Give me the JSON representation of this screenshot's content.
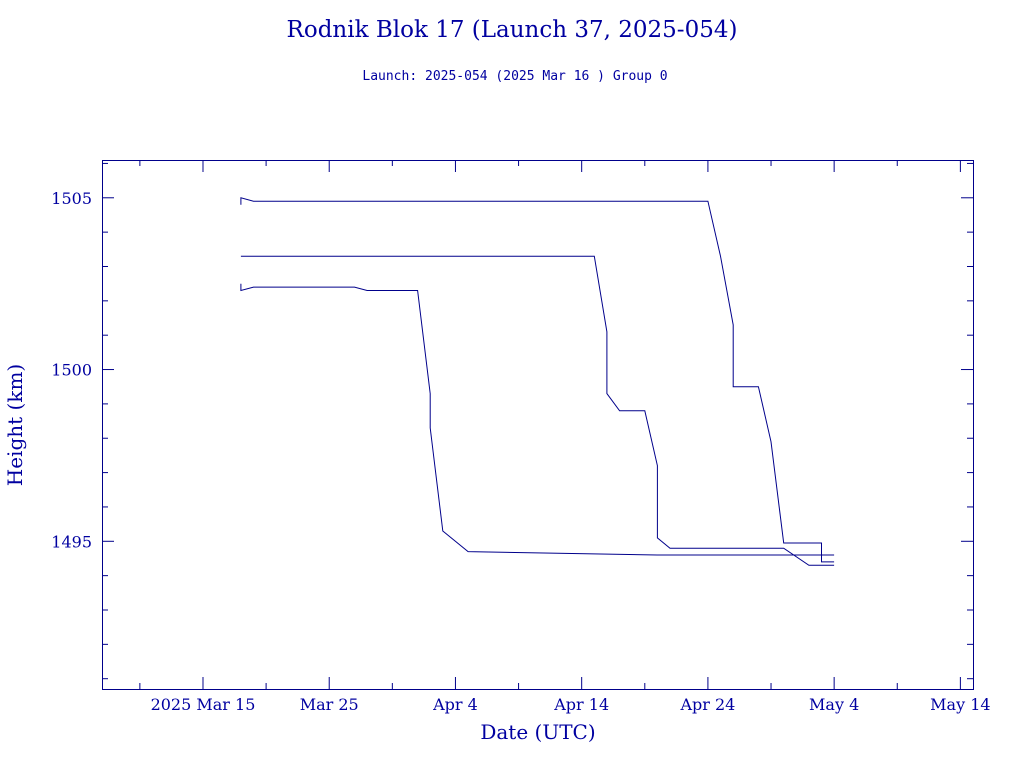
{
  "chart_data": {
    "type": "line",
    "title": "Rodnik Blok 17 (Launch 37, 2025-054)",
    "subtitle": "Launch: 2025-054  (2025 Mar 16 )  Group 0",
    "xlabel": "Date (UTC)",
    "ylabel": "Height (km)",
    "xlim": [
      "2025-03-07",
      "2025-05-15"
    ],
    "ylim": [
      1490.7,
      1506.1
    ],
    "x_ticks": [
      {
        "date": "2025-03-15",
        "label": "2025 Mar 15"
      },
      {
        "date": "2025-03-25",
        "label": "Mar 25"
      },
      {
        "date": "2025-04-04",
        "label": "Apr  4"
      },
      {
        "date": "2025-04-14",
        "label": "Apr 14"
      },
      {
        "date": "2025-04-24",
        "label": "Apr 24"
      },
      {
        "date": "2025-05-04",
        "label": "May  4"
      },
      {
        "date": "2025-05-14",
        "label": "May 14"
      }
    ],
    "y_ticks": [
      {
        "value": 1495,
        "label": "1495"
      },
      {
        "value": 1500,
        "label": "1500"
      },
      {
        "value": 1505,
        "label": "1505"
      }
    ],
    "grid": false,
    "series": [
      {
        "x": [
          "2025-03-18",
          "2025-03-18",
          "2025-03-19",
          "2025-04-14",
          "2025-04-24",
          "2025-04-25",
          "2025-04-26",
          "2025-04-26",
          "2025-04-28",
          "2025-04-29",
          "2025-04-30",
          "2025-05-03",
          "2025-05-03",
          "2025-05-04"
        ],
        "y": [
          1504.8,
          1505.0,
          1504.9,
          1504.9,
          1504.9,
          1503.3,
          1501.3,
          1499.5,
          1499.5,
          1497.9,
          1494.95,
          1494.95,
          1494.4,
          1494.4
        ]
      },
      {
        "x": [
          "2025-03-18",
          "2025-04-15",
          "2025-04-16",
          "2025-04-16",
          "2025-04-17",
          "2025-04-19",
          "2025-04-20",
          "2025-04-20",
          "2025-04-21",
          "2025-04-30",
          "2025-05-02",
          "2025-05-04"
        ],
        "y": [
          1503.3,
          1503.3,
          1501.1,
          1499.3,
          1498.8,
          1498.8,
          1497.2,
          1495.1,
          1494.8,
          1494.8,
          1494.3,
          1494.3
        ]
      },
      {
        "x": [
          "2025-03-18",
          "2025-03-18",
          "2025-03-19",
          "2025-03-27",
          "2025-03-28",
          "2025-04-01",
          "2025-04-02",
          "2025-04-02",
          "2025-04-02",
          "2025-04-03",
          "2025-04-03",
          "2025-04-05",
          "2025-04-20",
          "2025-05-04"
        ],
        "y": [
          1502.5,
          1502.3,
          1502.4,
          1502.4,
          1502.3,
          1502.3,
          1499.3,
          1498.3,
          1498.3,
          1495.3,
          1495.3,
          1494.7,
          1494.6,
          1494.6
        ]
      }
    ]
  }
}
